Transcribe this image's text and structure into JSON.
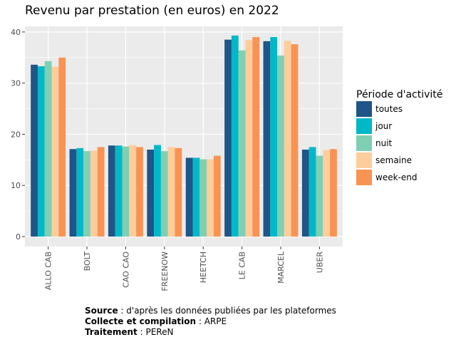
{
  "chart_data": {
    "type": "bar",
    "title": "Revenu par prestation (en euros) en 2022",
    "xlabel": "",
    "ylabel": "",
    "ylim": [
      -1.95,
      41.1
    ],
    "yticks": [
      0,
      10,
      20,
      30,
      40
    ],
    "grid": true,
    "legend_position": "right",
    "legend_title": "Période d'activité",
    "categories": [
      "ALLO CAB",
      "BOLT",
      "CAO CAO",
      "FREENOW",
      "HEETCH",
      "LE CAB",
      "MARCEL",
      "UBER"
    ],
    "series": [
      {
        "name": "toutes",
        "color": "#1f5587",
        "values": [
          33.6,
          17.1,
          17.8,
          17.0,
          15.4,
          38.5,
          38.2,
          17.0
        ]
      },
      {
        "name": "jour",
        "color": "#00b8c8",
        "values": [
          33.3,
          17.3,
          17.8,
          17.9,
          15.4,
          39.3,
          39.0,
          17.5
        ]
      },
      {
        "name": "nuit",
        "color": "#7fd0b3",
        "values": [
          34.3,
          16.7,
          17.6,
          16.7,
          15.1,
          36.4,
          35.4,
          15.8
        ]
      },
      {
        "name": "semaine",
        "color": "#fdcd9c",
        "values": [
          33.2,
          16.8,
          17.9,
          17.5,
          15.1,
          38.4,
          38.3,
          16.9
        ]
      },
      {
        "name": "week-end",
        "color": "#f99354",
        "values": [
          35.0,
          17.5,
          17.5,
          17.3,
          15.8,
          39.0,
          37.6,
          17.1
        ]
      }
    ]
  },
  "caption": {
    "source_label": "Source",
    "source_text": " : d'après les données publiées par les plateformes",
    "collecte_label": "Collecte et compilation",
    "collecte_text": " : ARPE",
    "traitement_label": "Traitement",
    "traitement_text": " : PEReN"
  }
}
